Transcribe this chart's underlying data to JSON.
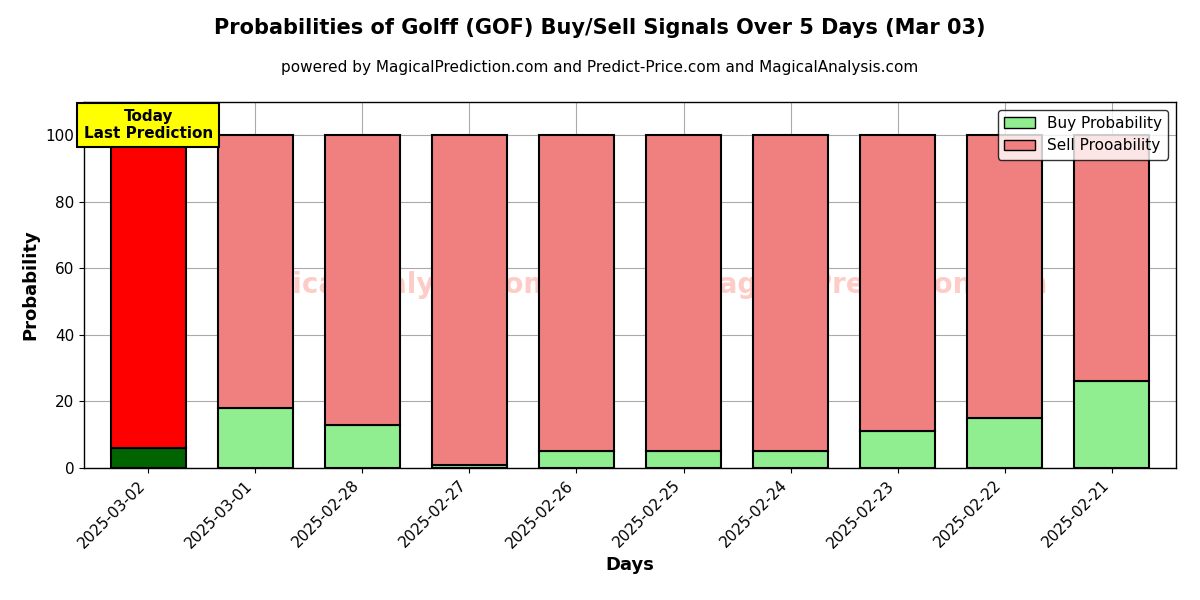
{
  "title": "Probabilities of Golff (GOF) Buy/Sell Signals Over 5 Days (Mar 03)",
  "subtitle": "powered by MagicalPrediction.com and Predict-Price.com and MagicalAnalysis.com",
  "xlabel": "Days",
  "ylabel": "Probability",
  "categories": [
    "2025-03-02",
    "2025-03-01",
    "2025-02-28",
    "2025-02-27",
    "2025-02-26",
    "2025-02-25",
    "2025-02-24",
    "2025-02-23",
    "2025-02-22",
    "2025-02-21"
  ],
  "buy_values": [
    6,
    18,
    13,
    1,
    5,
    5,
    5,
    11,
    15,
    26
  ],
  "sell_values": [
    94,
    82,
    87,
    99,
    95,
    95,
    95,
    89,
    85,
    74
  ],
  "today_bar_index": 0,
  "today_buy_color": "#006400",
  "today_sell_color": "#FF0000",
  "buy_color": "#90EE90",
  "sell_color": "#F08080",
  "today_label_bg": "#FFFF00",
  "today_label_text": "Today\nLast Prediction",
  "legend_buy": "Buy Probability",
  "legend_sell": "Sell Prooability",
  "ylim": [
    0,
    110
  ],
  "yticks": [
    0,
    20,
    40,
    60,
    80,
    100
  ],
  "dashed_line_y": 110,
  "bar_edgecolor": "#000000",
  "bar_linewidth": 1.5,
  "grid_color": "#AAAAAA",
  "background_color": "#FFFFFF",
  "title_fontsize": 15,
  "subtitle_fontsize": 11,
  "axis_label_fontsize": 13,
  "tick_fontsize": 11,
  "legend_fontsize": 11
}
